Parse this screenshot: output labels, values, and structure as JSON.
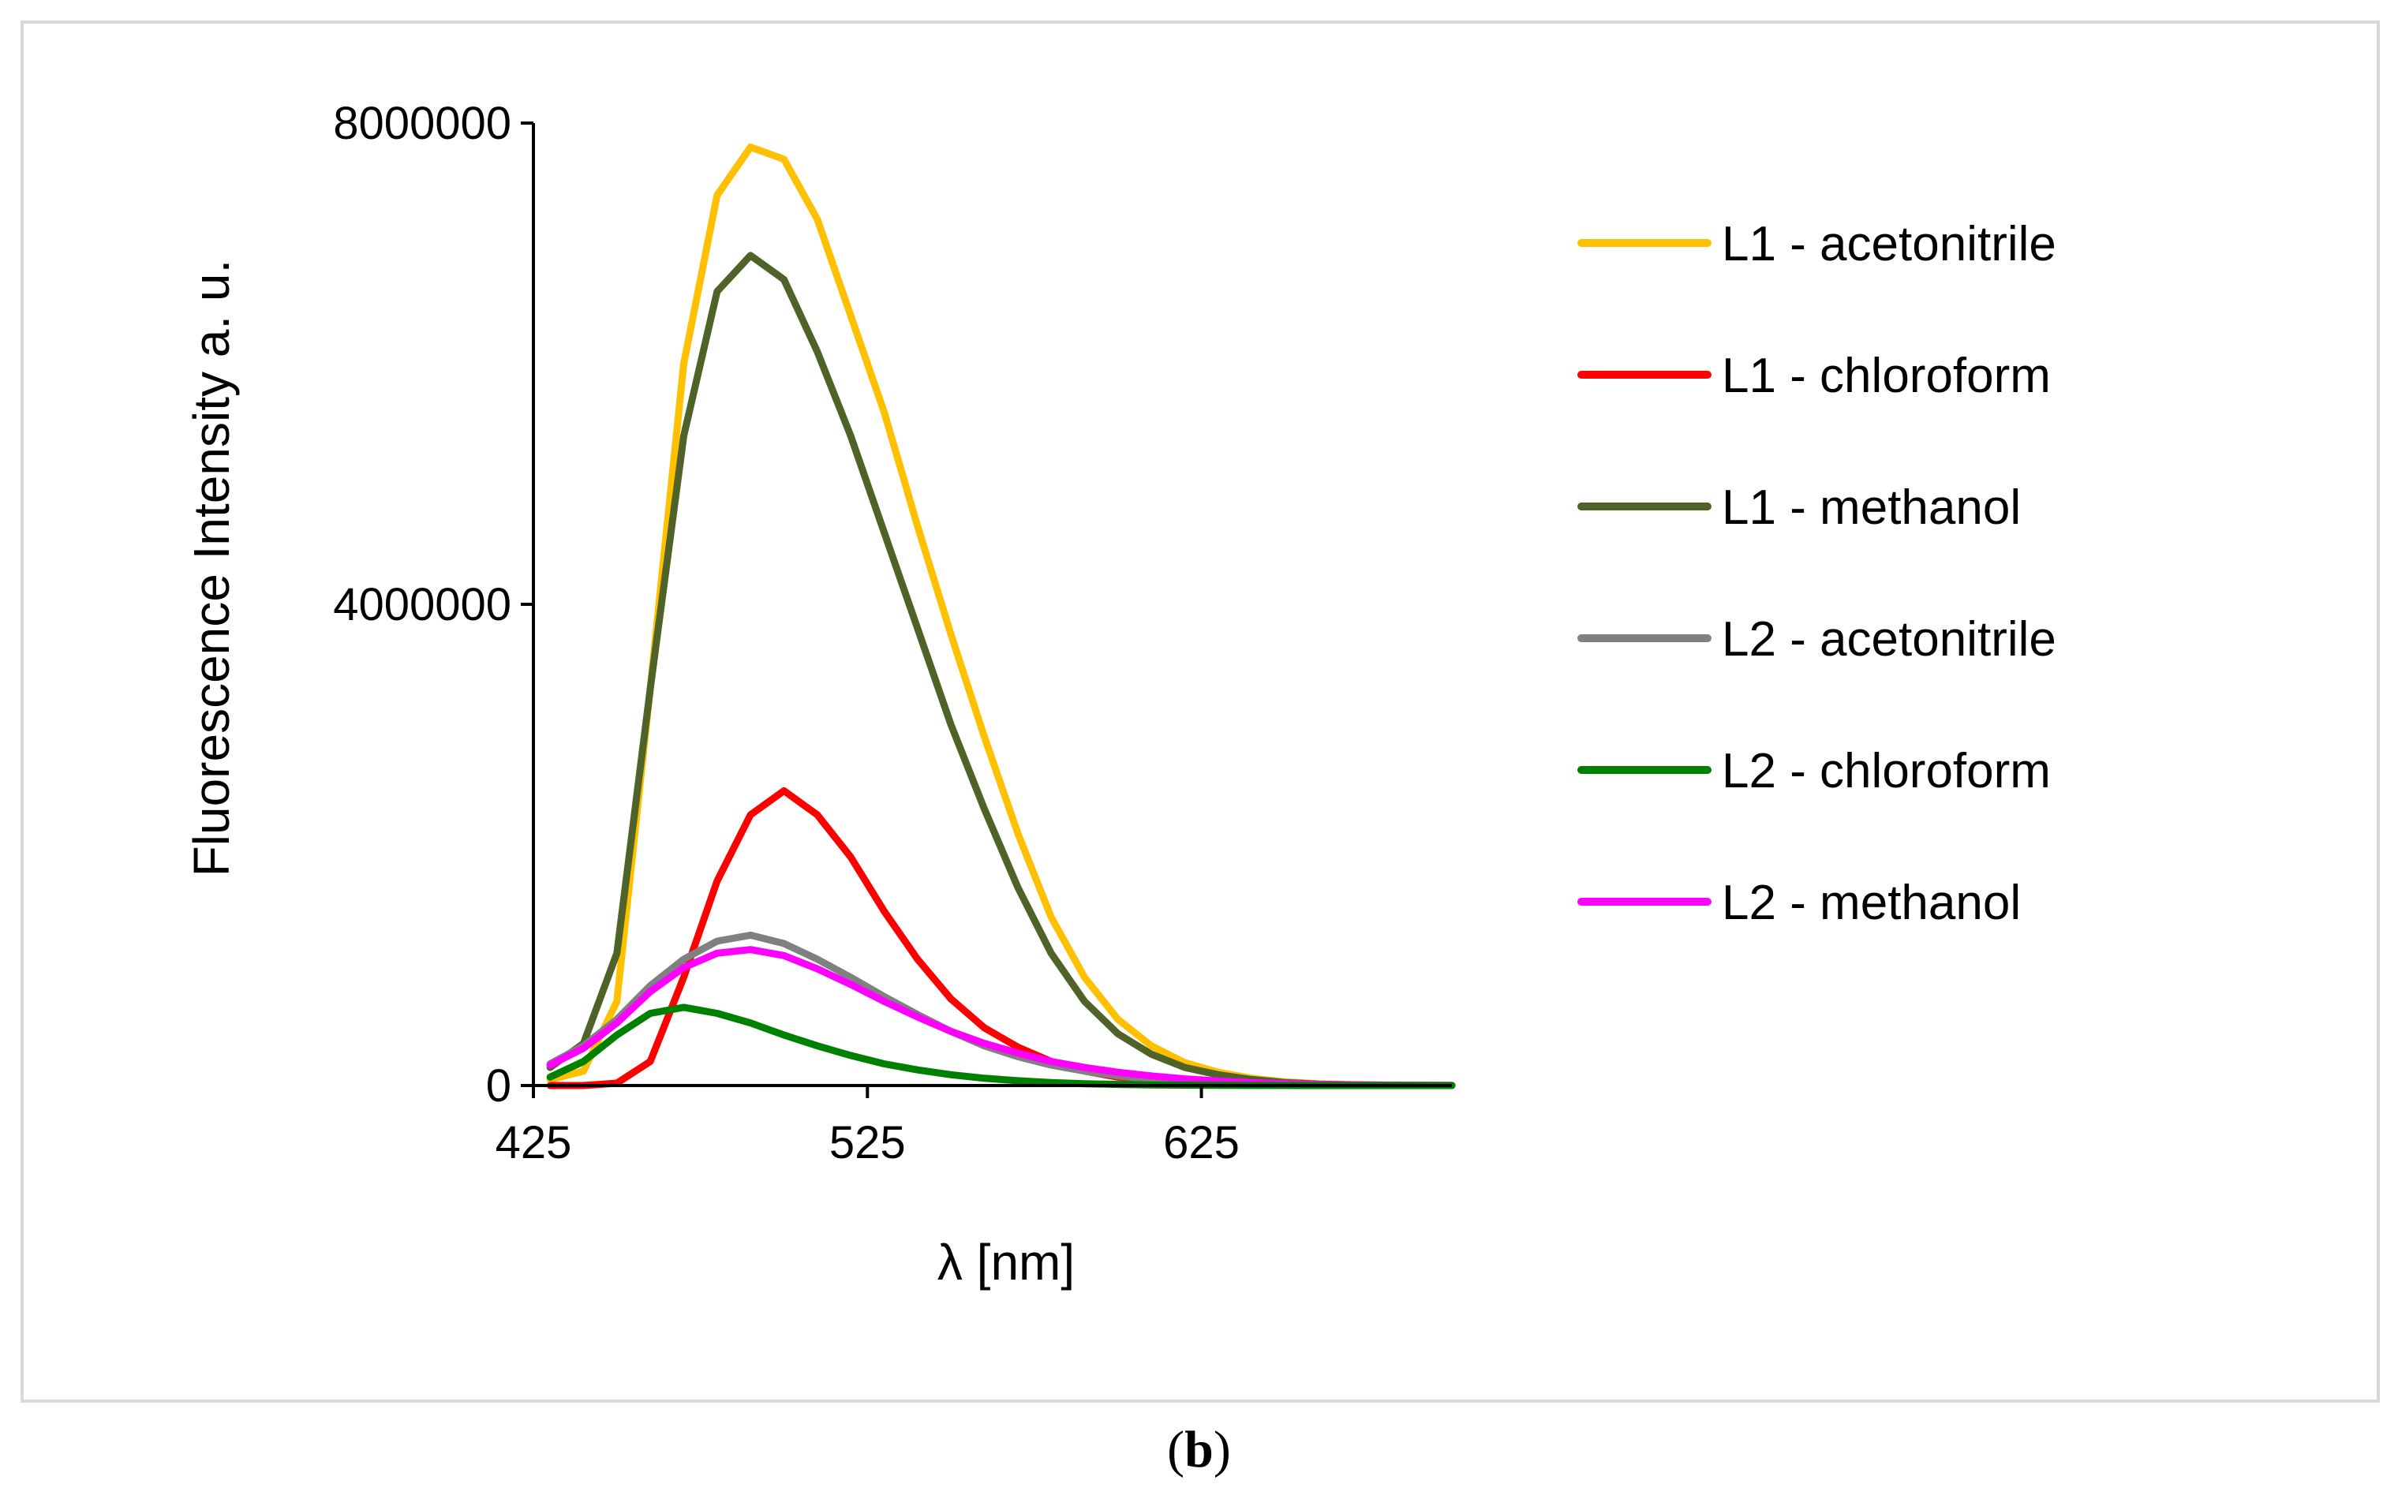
{
  "caption": {
    "open": "(",
    "letter": "b",
    "close": ")"
  },
  "chart_data": {
    "type": "line",
    "title": "",
    "xlabel": "λ [nm]",
    "ylabel": "Fluorescence Intensity a. u.",
    "xlim": [
      425,
      700
    ],
    "ylim": [
      0,
      8000000
    ],
    "xticks": [
      425,
      525,
      625
    ],
    "xtick_labels": [
      "425",
      "525",
      "625"
    ],
    "yticks": [
      0,
      4000000,
      8000000
    ],
    "ytick_labels": [
      "0",
      "4000000",
      "8000000"
    ],
    "grid": false,
    "legend": "right",
    "x": [
      430,
      440,
      450,
      460,
      470,
      480,
      490,
      500,
      510,
      520,
      530,
      540,
      550,
      560,
      570,
      580,
      590,
      600,
      610,
      620,
      630,
      640,
      650,
      660,
      670,
      680,
      690,
      700
    ],
    "series": [
      {
        "name": "L1 - acetonitrile",
        "color": "#ffc000",
        "values": [
          50000,
          120000,
          700000,
          3300000,
          6000000,
          7400000,
          7800000,
          7700000,
          7200000,
          6400000,
          5600000,
          4650000,
          3750000,
          2900000,
          2100000,
          1400000,
          900000,
          550000,
          330000,
          190000,
          110000,
          60000,
          30000,
          15000,
          8000,
          4000,
          2000,
          1000
        ]
      },
      {
        "name": "L1 - chloroform",
        "color": "#ff0000",
        "values": [
          0,
          0,
          20000,
          200000,
          900000,
          1700000,
          2250000,
          2450000,
          2250000,
          1900000,
          1450000,
          1050000,
          720000,
          480000,
          320000,
          200000,
          120000,
          70000,
          40000,
          20000,
          10000,
          5000,
          2000,
          1000,
          0,
          0,
          0,
          0
        ]
      },
      {
        "name": "L1 - methanol",
        "color": "#4f6228",
        "values": [
          150000,
          350000,
          1100000,
          3300000,
          5400000,
          6600000,
          6900000,
          6700000,
          6100000,
          5400000,
          4600000,
          3800000,
          3000000,
          2300000,
          1650000,
          1100000,
          700000,
          430000,
          260000,
          150000,
          90000,
          50000,
          25000,
          12000,
          6000,
          3000,
          1500,
          0
        ]
      },
      {
        "name": "L2 - acetonitrile",
        "color": "#808080",
        "values": [
          180000,
          330000,
          550000,
          830000,
          1050000,
          1200000,
          1250000,
          1180000,
          1050000,
          900000,
          740000,
          590000,
          450000,
          330000,
          240000,
          170000,
          120000,
          80000,
          50000,
          30000,
          18000,
          10000,
          6000,
          3000,
          2000,
          1000,
          500,
          0
        ]
      },
      {
        "name": "L2 - chloroform",
        "color": "#008000",
        "values": [
          70000,
          200000,
          420000,
          600000,
          650000,
          600000,
          520000,
          420000,
          330000,
          250000,
          180000,
          130000,
          90000,
          60000,
          40000,
          25000,
          15000,
          9000,
          5000,
          3000,
          1500,
          800,
          400,
          200,
          100,
          0,
          0,
          0
        ]
      },
      {
        "name": "L2 - methanol",
        "color": "#ff00ff",
        "values": [
          170000,
          310000,
          520000,
          780000,
          980000,
          1100000,
          1130000,
          1080000,
          970000,
          840000,
          700000,
          570000,
          450000,
          350000,
          270000,
          200000,
          150000,
          110000,
          80000,
          55000,
          38000,
          25000,
          16000,
          10000,
          6000,
          3500,
          2000,
          1000
        ]
      }
    ]
  }
}
